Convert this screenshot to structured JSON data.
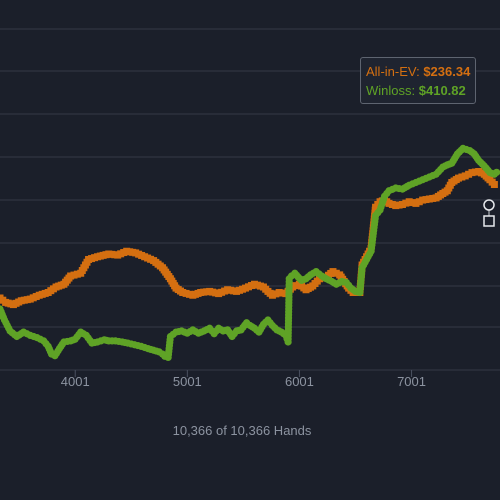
{
  "chart_data": {
    "type": "line",
    "x_ticks": [
      "4001",
      "5001",
      "6001",
      "7001"
    ],
    "xlim": [
      3330,
      7790
    ],
    "ylim": [
      -150,
      400
    ],
    "grid": true,
    "series": [
      {
        "name": "All-in-EV",
        "color": "#d46f11",
        "marker": "square",
        "points": [
          [
            3330,
            0
          ],
          [
            3380,
            -8
          ],
          [
            3450,
            -12
          ],
          [
            3520,
            -5
          ],
          [
            3600,
            -2
          ],
          [
            3680,
            5
          ],
          [
            3760,
            10
          ],
          [
            3830,
            20
          ],
          [
            3900,
            25
          ],
          [
            3960,
            40
          ],
          [
            4050,
            45
          ],
          [
            4120,
            70
          ],
          [
            4200,
            75
          ],
          [
            4300,
            80
          ],
          [
            4380,
            78
          ],
          [
            4460,
            85
          ],
          [
            4540,
            82
          ],
          [
            4620,
            75
          ],
          [
            4700,
            68
          ],
          [
            4780,
            55
          ],
          [
            4850,
            35
          ],
          [
            4900,
            18
          ],
          [
            4960,
            10
          ],
          [
            5050,
            5
          ],
          [
            5120,
            10
          ],
          [
            5200,
            12
          ],
          [
            5280,
            8
          ],
          [
            5360,
            15
          ],
          [
            5440,
            12
          ],
          [
            5520,
            18
          ],
          [
            5600,
            25
          ],
          [
            5680,
            20
          ],
          [
            5720,
            12
          ],
          [
            5760,
            5
          ],
          [
            5820,
            10
          ],
          [
            5880,
            8
          ],
          [
            5940,
            20
          ],
          [
            6000,
            25
          ],
          [
            6060,
            15
          ],
          [
            6120,
            22
          ],
          [
            6180,
            35
          ],
          [
            6240,
            38
          ],
          [
            6300,
            48
          ],
          [
            6360,
            42
          ],
          [
            6400,
            30
          ],
          [
            6440,
            18
          ],
          [
            6480,
            10
          ],
          [
            6540,
            10
          ],
          [
            6560,
            60
          ],
          [
            6600,
            75
          ],
          [
            6640,
            90
          ],
          [
            6680,
            165
          ],
          [
            6720,
            175
          ],
          [
            6760,
            178
          ],
          [
            6800,
            172
          ],
          [
            6860,
            168
          ],
          [
            6920,
            170
          ],
          [
            6980,
            175
          ],
          [
            7040,
            172
          ],
          [
            7100,
            178
          ],
          [
            7160,
            180
          ],
          [
            7220,
            182
          ],
          [
            7280,
            190
          ],
          [
            7320,
            195
          ],
          [
            7360,
            210
          ],
          [
            7420,
            218
          ],
          [
            7480,
            222
          ],
          [
            7540,
            228
          ],
          [
            7600,
            230
          ],
          [
            7650,
            225
          ],
          [
            7700,
            215
          ],
          [
            7760,
            202
          ]
        ]
      },
      {
        "name": "Winloss",
        "color": "#5fa326",
        "marker": "circle",
        "points": [
          [
            3330,
            -20
          ],
          [
            3370,
            -40
          ],
          [
            3420,
            -60
          ],
          [
            3480,
            -70
          ],
          [
            3540,
            -62
          ],
          [
            3600,
            -68
          ],
          [
            3660,
            -72
          ],
          [
            3720,
            -78
          ],
          [
            3760,
            -88
          ],
          [
            3790,
            -102
          ],
          [
            3820,
            -105
          ],
          [
            3860,
            -92
          ],
          [
            3900,
            -80
          ],
          [
            3960,
            -78
          ],
          [
            4000,
            -75
          ],
          [
            4050,
            -62
          ],
          [
            4100,
            -68
          ],
          [
            4150,
            -82
          ],
          [
            4200,
            -80
          ],
          [
            4260,
            -76
          ],
          [
            4300,
            -78
          ],
          [
            4360,
            -78
          ],
          [
            4420,
            -80
          ],
          [
            4470,
            -82
          ],
          [
            4530,
            -85
          ],
          [
            4590,
            -88
          ],
          [
            4650,
            -92
          ],
          [
            4700,
            -95
          ],
          [
            4750,
            -98
          ],
          [
            4780,
            -102
          ],
          [
            4800,
            -106
          ],
          [
            4830,
            -108
          ],
          [
            4850,
            -70
          ],
          [
            4900,
            -62
          ],
          [
            4950,
            -60
          ],
          [
            5000,
            -64
          ],
          [
            5050,
            -58
          ],
          [
            5100,
            -64
          ],
          [
            5150,
            -60
          ],
          [
            5200,
            -55
          ],
          [
            5240,
            -65
          ],
          [
            5280,
            -55
          ],
          [
            5320,
            -60
          ],
          [
            5360,
            -58
          ],
          [
            5400,
            -70
          ],
          [
            5440,
            -60
          ],
          [
            5480,
            -58
          ],
          [
            5530,
            -45
          ],
          [
            5560,
            -50
          ],
          [
            5600,
            -55
          ],
          [
            5640,
            -62
          ],
          [
            5680,
            -48
          ],
          [
            5720,
            -40
          ],
          [
            5760,
            -50
          ],
          [
            5800,
            -58
          ],
          [
            5840,
            -62
          ],
          [
            5880,
            -68
          ],
          [
            5900,
            -80
          ],
          [
            5910,
            35
          ],
          [
            5930,
            40
          ],
          [
            5960,
            45
          ],
          [
            5990,
            38
          ],
          [
            6020,
            32
          ],
          [
            6060,
            35
          ],
          [
            6100,
            42
          ],
          [
            6150,
            48
          ],
          [
            6200,
            40
          ],
          [
            6240,
            35
          ],
          [
            6290,
            30
          ],
          [
            6330,
            25
          ],
          [
            6380,
            30
          ],
          [
            6420,
            28
          ],
          [
            6460,
            18
          ],
          [
            6500,
            12
          ],
          [
            6540,
            10
          ],
          [
            6560,
            55
          ],
          [
            6600,
            70
          ],
          [
            6640,
            85
          ],
          [
            6680,
            150
          ],
          [
            6720,
            160
          ],
          [
            6760,
            185
          ],
          [
            6800,
            195
          ],
          [
            6860,
            200
          ],
          [
            6920,
            198
          ],
          [
            6980,
            205
          ],
          [
            7040,
            210
          ],
          [
            7100,
            215
          ],
          [
            7160,
            220
          ],
          [
            7220,
            225
          ],
          [
            7280,
            238
          ],
          [
            7320,
            242
          ],
          [
            7360,
            245
          ],
          [
            7410,
            262
          ],
          [
            7460,
            272
          ],
          [
            7520,
            268
          ],
          [
            7560,
            262
          ],
          [
            7600,
            250
          ],
          [
            7650,
            240
          ],
          [
            7700,
            228
          ],
          [
            7740,
            225
          ],
          [
            7780,
            232
          ]
        ]
      }
    ]
  },
  "tooltip": {
    "ev_label": "All-in-EV:",
    "ev_value": "$236.34",
    "wl_label": "Winloss:",
    "wl_value": "$410.82"
  },
  "footer": {
    "hands_text": "10,366 of 10,366 Hands"
  }
}
